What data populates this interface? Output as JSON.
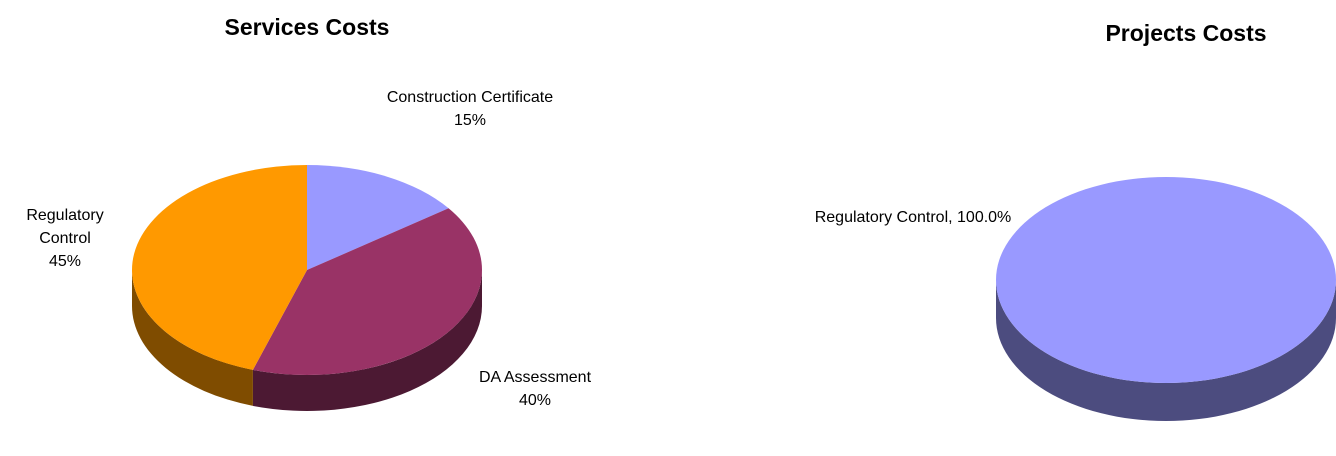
{
  "chart_data": [
    {
      "type": "pie",
      "title": "Services Costs",
      "categories": [
        "Construction Certificate",
        "DA Assessment",
        "Regulatory Control"
      ],
      "values": [
        15,
        40,
        45
      ],
      "value_labels": [
        "15%",
        "40%",
        "45%"
      ],
      "colors": [
        "#9999ff",
        "#993366",
        "#ff9900"
      ]
    },
    {
      "type": "pie",
      "title": "Projects Costs",
      "categories": [
        "Regulatory Control"
      ],
      "values": [
        100
      ],
      "value_labels": [
        "100.0%"
      ],
      "colors": [
        "#9999ff"
      ]
    }
  ]
}
